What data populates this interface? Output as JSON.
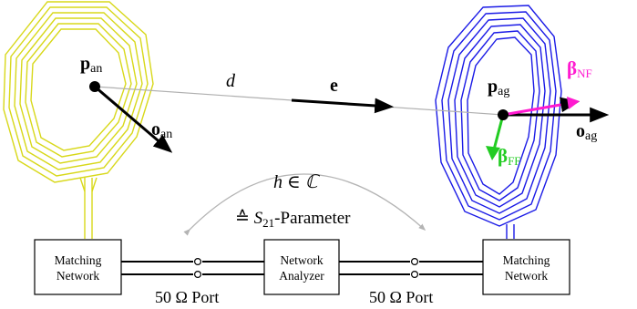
{
  "labels": {
    "p_an": "p",
    "p_an_sub": "an",
    "o_an": "o",
    "o_an_sub": "an",
    "d": "d",
    "e": "e",
    "p_ag": "p",
    "p_ag_sub": "ag",
    "o_ag": "o",
    "o_ag_sub": "ag",
    "beta_nf": "β",
    "beta_nf_sub": "NF",
    "beta_ff": "β",
    "beta_ff_sub": "FF",
    "h_eq": "h ∈ ℂ",
    "s21_prefix": "≙ ",
    "s21_s": "S",
    "s21_sub": "21",
    "s21_suffix": "-Parameter",
    "port_left": "50 Ω Port",
    "port_right": "50 Ω Port"
  },
  "boxes": {
    "left_line1": "Matching",
    "left_line2": "Network",
    "center_line1": "Network",
    "center_line2": "Analyzer",
    "right_line1": "Matching",
    "right_line2": "Network"
  },
  "colors": {
    "anchor_coil": "#d8d81a",
    "agent_coil": "#1a1ae6",
    "beta_nf": "#ff1ad0",
    "beta_ff": "#22cc22",
    "link_line": "#b0b0b0",
    "curve": "#b4b4b4"
  }
}
